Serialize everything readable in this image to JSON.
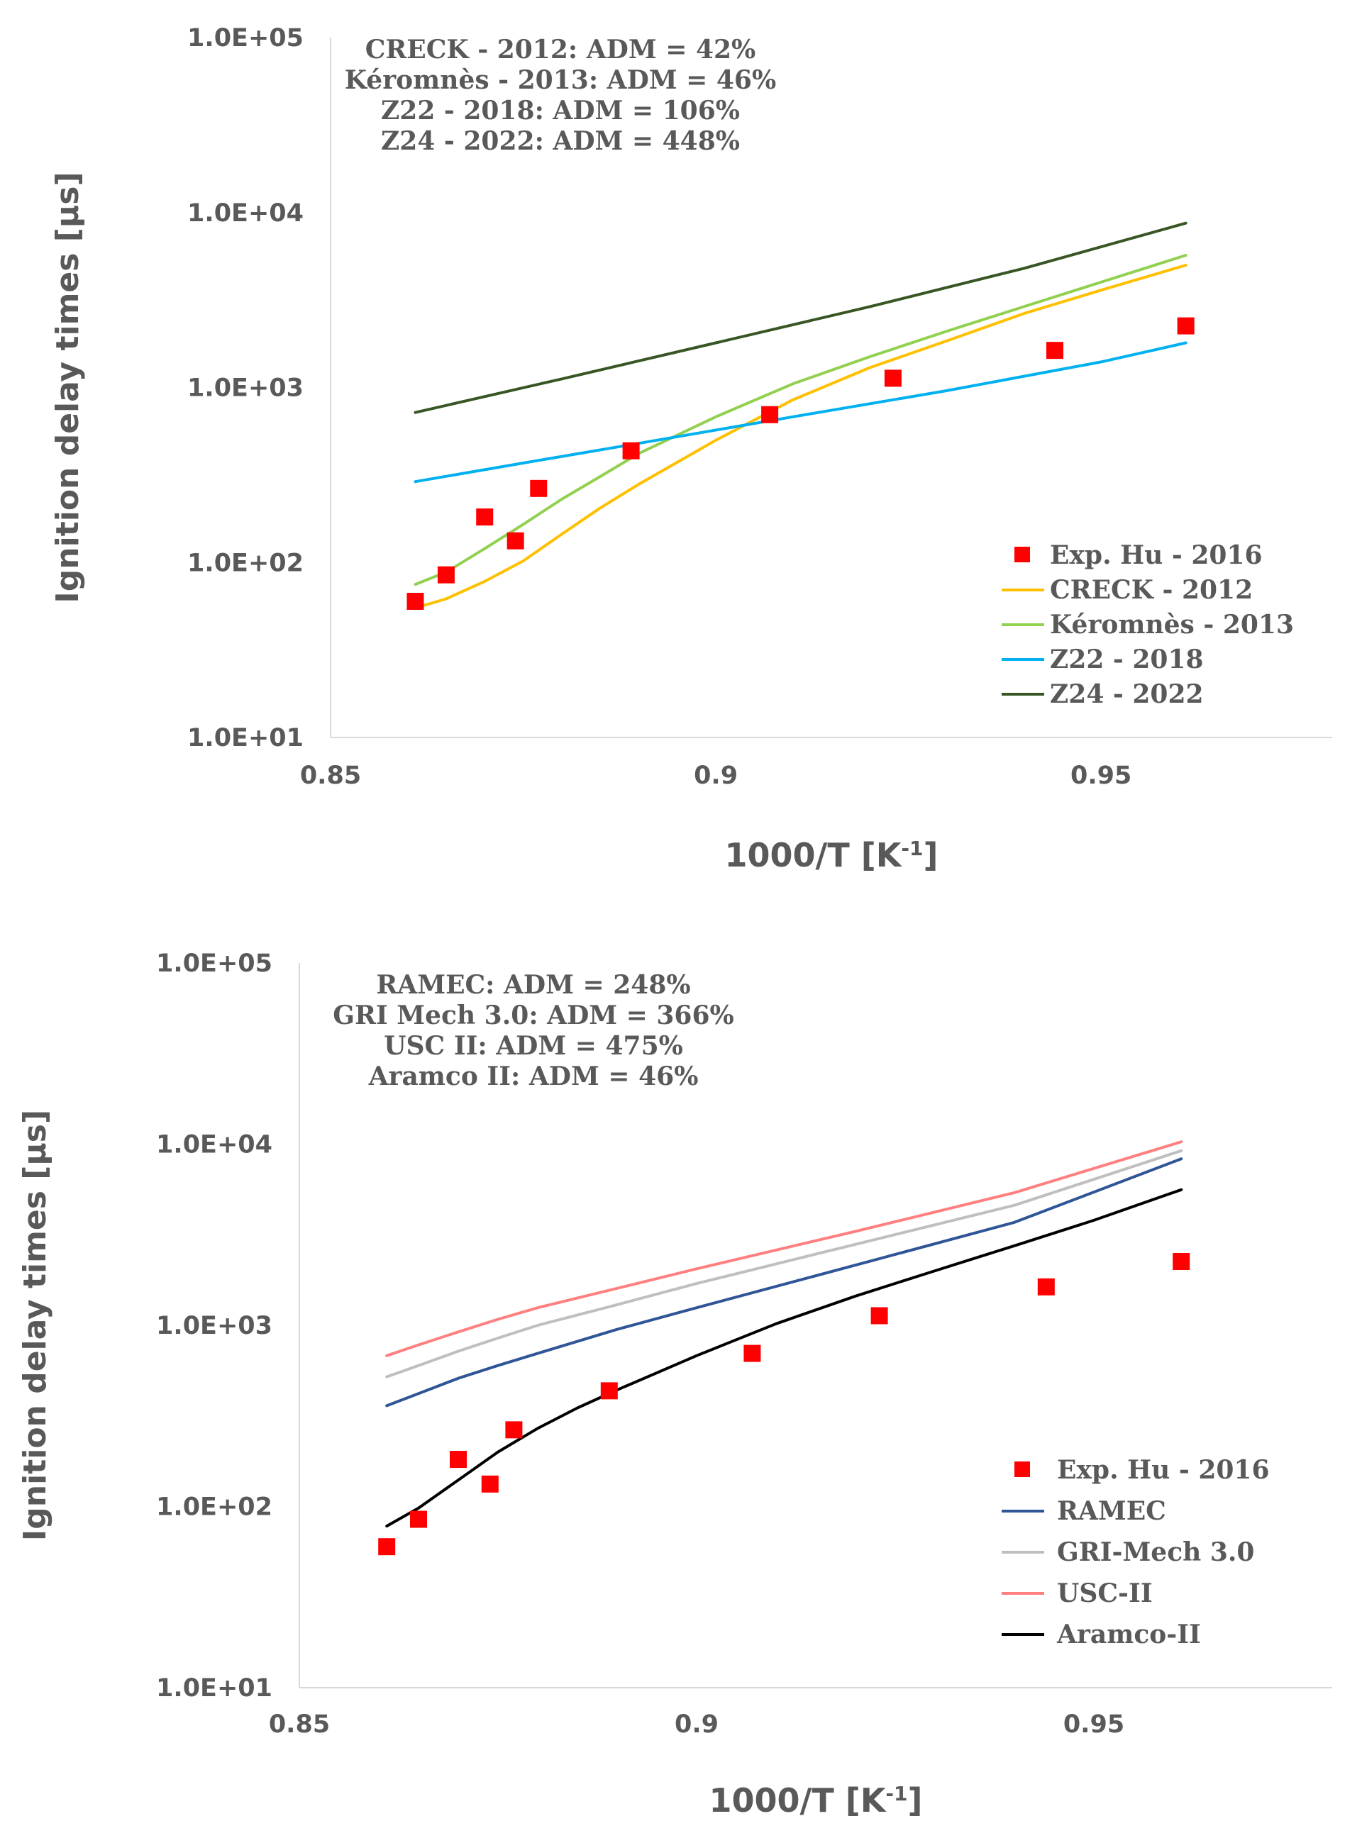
{
  "chart_data": [
    {
      "type": "line",
      "ylabel": "Ignition delay times [µs]",
      "xlabel": "1000/T [K",
      "xlabel_sup": "-1",
      "xlabel_end": "]",
      "xlim": [
        0.85,
        0.98
      ],
      "ylim": [
        10,
        100000
      ],
      "yscale": "log",
      "x_ticks": [
        "0.85",
        "0.9",
        "0.95"
      ],
      "x_tick_values": [
        0.85,
        0.9,
        0.95
      ],
      "y_ticks": [
        "1.0E+01",
        "1.0E+02",
        "1.0E+03",
        "1.0E+04",
        "1.0E+05"
      ],
      "y_tick_values": [
        10,
        100,
        1000,
        10000,
        100000
      ],
      "annotations": [
        "CRECK - 2012: ADM = 42%",
        "Kéromnès - 2013: ADM = 46%",
        "Z22 - 2018: ADM = 106%",
        "Z24 - 2022: ADM = 448%"
      ],
      "series": [
        {
          "name": "Exp. Hu - 2016",
          "kind": "scatter",
          "color": "#ff0000",
          "x": [
            0.861,
            0.865,
            0.87,
            0.874,
            0.877,
            0.889,
            0.907,
            0.923,
            0.944,
            0.961
          ],
          "y": [
            60,
            85,
            182,
            133,
            265,
            435,
            700,
            1130,
            1630,
            2250
          ]
        },
        {
          "name": "CRECK - 2012",
          "kind": "line",
          "color": "#ffc000",
          "x": [
            0.861,
            0.865,
            0.87,
            0.875,
            0.88,
            0.885,
            0.89,
            0.9,
            0.91,
            0.92,
            0.93,
            0.94,
            0.95,
            0.961
          ],
          "y": [
            55,
            62,
            78,
            102,
            145,
            205,
            280,
            500,
            850,
            1300,
            1850,
            2650,
            3600,
            5000
          ]
        },
        {
          "name": "Kéromnès - 2013",
          "kind": "line",
          "color": "#92d050",
          "x": [
            0.861,
            0.865,
            0.87,
            0.875,
            0.88,
            0.885,
            0.89,
            0.9,
            0.91,
            0.92,
            0.93,
            0.94,
            0.95,
            0.961
          ],
          "y": [
            75,
            88,
            120,
            165,
            230,
            310,
            420,
            680,
            1050,
            1500,
            2100,
            2900,
            4000,
            5700
          ]
        },
        {
          "name": "Z22 - 2018",
          "kind": "line",
          "color": "#00b0f0",
          "x": [
            0.861,
            0.875,
            0.89,
            0.91,
            0.93,
            0.95,
            0.961
          ],
          "y": [
            290,
            370,
            480,
            680,
            960,
            1400,
            1800
          ]
        },
        {
          "name": "Z24 - 2022",
          "kind": "line",
          "color": "#375623",
          "x": [
            0.861,
            0.88,
            0.9,
            0.92,
            0.94,
            0.961
          ],
          "y": [
            720,
            1120,
            1800,
            2900,
            4800,
            8700
          ]
        }
      ],
      "legend": [
        "Exp. Hu - 2016",
        "CRECK - 2012",
        "Kéromnès - 2013",
        "Z22 - 2018",
        "Z24 - 2022"
      ]
    },
    {
      "type": "line",
      "ylabel": "Ignition delay times [µs]",
      "xlabel": "1000/T [K",
      "xlabel_sup": "-1",
      "xlabel_end": "]",
      "xlim": [
        0.85,
        0.98
      ],
      "ylim": [
        10,
        100000
      ],
      "yscale": "log",
      "x_ticks": [
        "0.85",
        "0.9",
        "0.95"
      ],
      "x_tick_values": [
        0.85,
        0.9,
        0.95
      ],
      "y_ticks": [
        "1.0E+01",
        "1.0E+02",
        "1.0E+03",
        "1.0E+04",
        "1.0E+05"
      ],
      "y_tick_values": [
        10,
        100,
        1000,
        10000,
        100000
      ],
      "annotations": [
        "RAMEC: ADM = 248%",
        "GRI Mech 3.0: ADM = 366%",
        "USC II: ADM = 475%",
        "Aramco II: ADM = 46%"
      ],
      "series": [
        {
          "name": "Exp. Hu - 2016",
          "kind": "scatter",
          "color": "#ff0000",
          "x": [
            0.861,
            0.865,
            0.87,
            0.874,
            0.877,
            0.889,
            0.907,
            0.923,
            0.944,
            0.961
          ],
          "y": [
            60,
            85,
            182,
            133,
            265,
            435,
            700,
            1130,
            1630,
            2250
          ]
        },
        {
          "name": "RAMEC",
          "kind": "line",
          "color": "#2f5597",
          "x": [
            0.861,
            0.865,
            0.87,
            0.875,
            0.88,
            0.89,
            0.9,
            0.92,
            0.94,
            0.961
          ],
          "y": [
            360,
            420,
            510,
            600,
            700,
            950,
            1250,
            2150,
            3700,
            8300
          ]
        },
        {
          "name": "GRI-Mech 3.0",
          "kind": "line",
          "color": "#bfbfbf",
          "x": [
            0.861,
            0.865,
            0.87,
            0.875,
            0.88,
            0.89,
            0.9,
            0.92,
            0.94,
            0.961
          ],
          "y": [
            520,
            600,
            720,
            850,
            1000,
            1300,
            1700,
            2800,
            4600,
            9200
          ]
        },
        {
          "name": "USC-II",
          "kind": "line",
          "color": "#ff8080",
          "x": [
            0.861,
            0.865,
            0.87,
            0.875,
            0.88,
            0.89,
            0.9,
            0.92,
            0.94,
            0.961
          ],
          "y": [
            680,
            780,
            920,
            1080,
            1250,
            1600,
            2050,
            3300,
            5400,
            10300
          ]
        },
        {
          "name": "Aramco-II",
          "kind": "line",
          "color": "#000000",
          "x": [
            0.861,
            0.865,
            0.87,
            0.875,
            0.88,
            0.885,
            0.89,
            0.9,
            0.91,
            0.92,
            0.93,
            0.94,
            0.95,
            0.961
          ],
          "y": [
            78,
            98,
            140,
            200,
            270,
            350,
            440,
            680,
            1020,
            1450,
            2000,
            2750,
            3800,
            5600
          ]
        }
      ],
      "legend": [
        "Exp. Hu - 2016",
        "RAMEC",
        "GRI-Mech 3.0",
        "USC-II",
        "Aramco-II"
      ]
    }
  ]
}
